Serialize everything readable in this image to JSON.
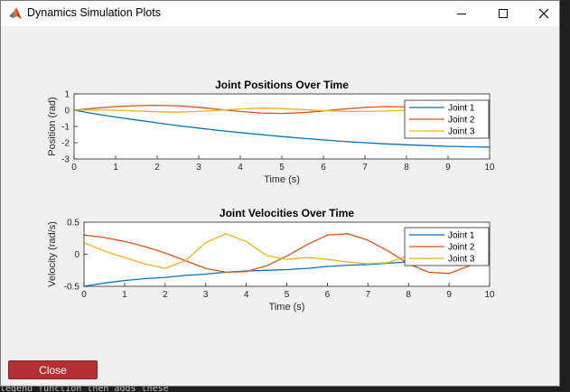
{
  "window": {
    "title": "Dynamics Simulation Plots"
  },
  "buttons": {
    "close_label": "Close"
  },
  "colors": {
    "joint1": "#0072bd",
    "joint2": "#d95319",
    "joint3": "#edb120",
    "close_button": "#b43035"
  },
  "background": {
    "code_text": "legend function then adds these"
  },
  "chart_data": [
    {
      "type": "line",
      "title": "Joint Positions Over Time",
      "xlabel": "Time (s)",
      "ylabel": "Position (rad)",
      "xlim": [
        0,
        10
      ],
      "ylim": [
        -3,
        1
      ],
      "xticks": [
        0,
        1,
        2,
        3,
        4,
        5,
        6,
        7,
        8,
        9,
        10
      ],
      "yticks": [
        1,
        0,
        -1,
        -2,
        -3
      ],
      "legend_position": "top-right",
      "x": [
        0,
        0.5,
        1,
        1.5,
        2,
        2.5,
        3,
        3.5,
        4,
        4.5,
        5,
        5.5,
        6,
        6.5,
        7,
        7.5,
        8,
        8.5,
        9,
        9.5,
        10
      ],
      "series": [
        {
          "name": "Joint 1",
          "color": "#0072bd",
          "values": [
            0,
            -0.22,
            -0.42,
            -0.6,
            -0.78,
            -0.95,
            -1.1,
            -1.25,
            -1.38,
            -1.5,
            -1.62,
            -1.73,
            -1.83,
            -1.92,
            -2.0,
            -2.07,
            -2.13,
            -2.18,
            -2.22,
            -2.25,
            -2.27
          ]
        },
        {
          "name": "Joint 2",
          "color": "#d95319",
          "values": [
            0,
            0.12,
            0.22,
            0.28,
            0.3,
            0.27,
            0.18,
            0.05,
            -0.08,
            -0.17,
            -0.2,
            -0.15,
            -0.05,
            0.07,
            0.17,
            0.22,
            0.2,
            0.12,
            0.02,
            -0.05,
            -0.08
          ]
        },
        {
          "name": "Joint 3",
          "color": "#edb120",
          "values": [
            0,
            0.02,
            0.0,
            -0.05,
            -0.1,
            -0.12,
            -0.08,
            0.0,
            0.08,
            0.12,
            0.1,
            0.04,
            -0.03,
            -0.07,
            -0.08,
            -0.05,
            0.0,
            0.03,
            0.03,
            0.01,
            -0.02
          ]
        }
      ]
    },
    {
      "type": "line",
      "title": "Joint Velocities Over Time",
      "xlabel": "Time (s)",
      "ylabel": "Velocity (rad/s)",
      "xlim": [
        0,
        10
      ],
      "ylim": [
        -0.5,
        0.5
      ],
      "xticks": [
        0,
        1,
        2,
        3,
        4,
        5,
        6,
        7,
        8,
        9,
        10
      ],
      "yticks": [
        0.5,
        0,
        -0.5
      ],
      "legend_position": "top-right",
      "x": [
        0,
        0.5,
        1,
        1.5,
        2,
        2.5,
        3,
        3.5,
        4,
        4.5,
        5,
        5.5,
        6,
        6.5,
        7,
        7.5,
        8,
        8.5,
        9,
        9.5,
        10
      ],
      "series": [
        {
          "name": "Joint 1",
          "color": "#0072bd",
          "values": [
            -0.5,
            -0.45,
            -0.41,
            -0.38,
            -0.36,
            -0.33,
            -0.31,
            -0.28,
            -0.26,
            -0.25,
            -0.24,
            -0.22,
            -0.19,
            -0.17,
            -0.16,
            -0.14,
            -0.12,
            -0.1,
            -0.07,
            -0.05,
            -0.03
          ]
        },
        {
          "name": "Joint 2",
          "color": "#d95319",
          "values": [
            0.3,
            0.26,
            0.2,
            0.12,
            0.02,
            -0.1,
            -0.22,
            -0.28,
            -0.27,
            -0.18,
            -0.03,
            0.15,
            0.3,
            0.32,
            0.22,
            0.05,
            -0.15,
            -0.28,
            -0.3,
            -0.18,
            0.0
          ]
        },
        {
          "name": "Joint 3",
          "color": "#edb120",
          "values": [
            0.18,
            0.05,
            -0.05,
            -0.15,
            -0.22,
            -0.1,
            0.18,
            0.32,
            0.2,
            -0.02,
            -0.08,
            -0.05,
            -0.08,
            -0.12,
            -0.15,
            -0.13,
            -0.02,
            0.1,
            0.18,
            0.1,
            -0.12
          ]
        }
      ]
    }
  ]
}
